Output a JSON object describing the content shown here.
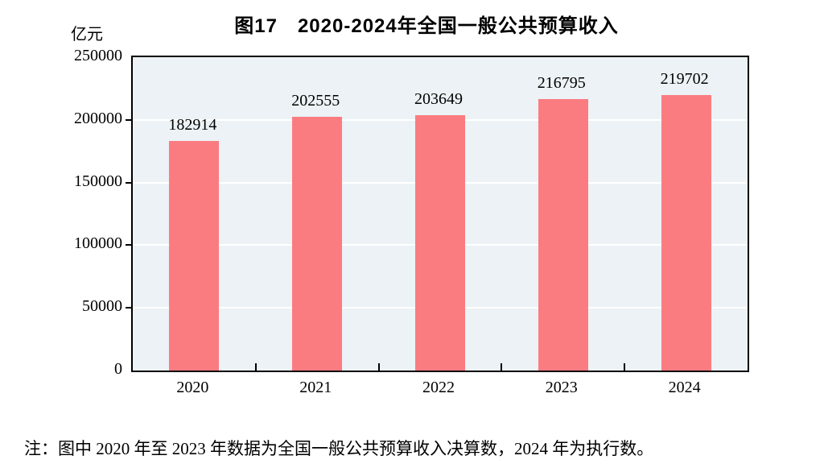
{
  "title": "图17　2020-2024年全国一般公共预算收入",
  "y_axis_unit": "亿元",
  "footnote": "注：图中 2020 年至 2023 年数据为全国一般公共预算收入决算数，2024 年为执行数。",
  "colors": {
    "bar": "#FA7C81",
    "plot_bg": "#ECF2F5",
    "gridline": "#FFFFFF",
    "axis": "#000000"
  },
  "chart_data": {
    "type": "bar",
    "categories": [
      "2020",
      "2021",
      "2022",
      "2023",
      "2024"
    ],
    "values": [
      182914,
      202555,
      203649,
      216795,
      219702
    ],
    "title": "图17　2020-2024年全国一般公共预算收入",
    "xlabel": "",
    "ylabel": "亿元",
    "ylim": [
      0,
      250000
    ],
    "yticks": [
      0,
      50000,
      100000,
      150000,
      200000,
      250000
    ],
    "grid": true,
    "legend_position": "none",
    "data_labels": true
  }
}
